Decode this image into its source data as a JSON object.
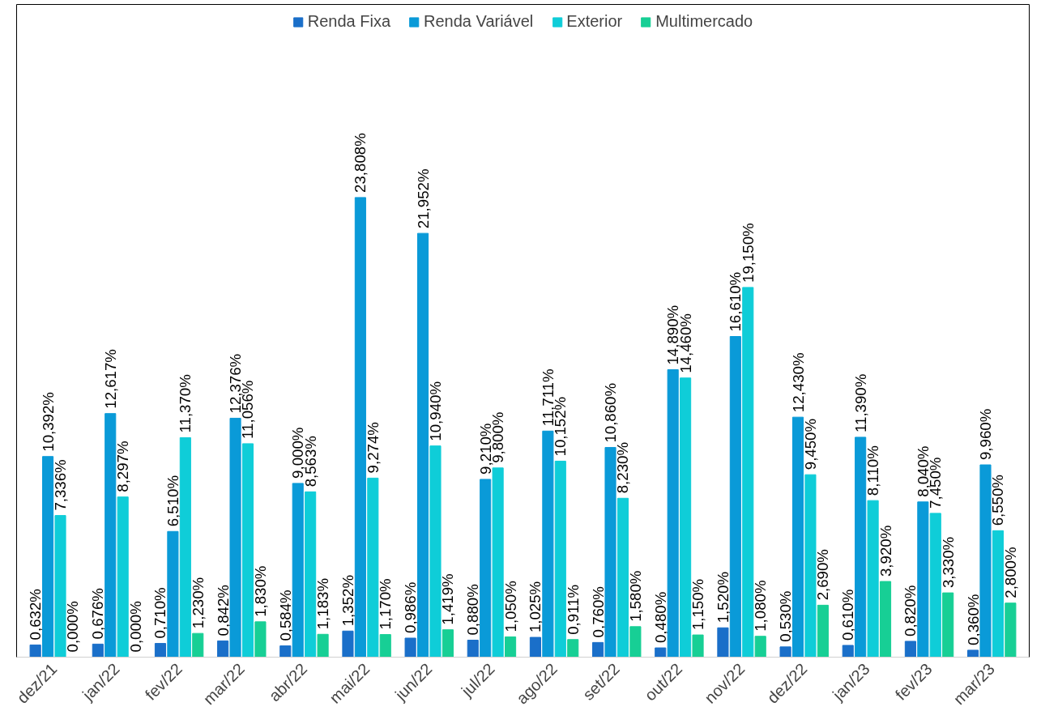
{
  "chart_data": {
    "type": "bar",
    "categories": [
      "dez/21",
      "jan/22",
      "fev/22",
      "mar/22",
      "abr/22",
      "mai/22",
      "jun/22",
      "jul/22",
      "ago/22",
      "set/22",
      "out/22",
      "nov/22",
      "dez/22",
      "jan/23",
      "fev/23",
      "mar/23"
    ],
    "series": [
      {
        "name": "Renda Fixa",
        "color": "#1a6fc9",
        "values": [
          0.632,
          0.676,
          0.71,
          0.842,
          0.584,
          1.352,
          0.986,
          0.88,
          1.025,
          0.76,
          0.48,
          1.52,
          0.53,
          0.61,
          0.82,
          0.36
        ],
        "value_labels": [
          "0,632%",
          "0,676%",
          "0,710%",
          "0,842%",
          "0,584%",
          "1,352%",
          "0,986%",
          "0,880%",
          "1,025%",
          "0,760%",
          "0,480%",
          "1,520%",
          "0,530%",
          "0,610%",
          "0,820%",
          "0,360%"
        ]
      },
      {
        "name": "Renda Variável",
        "color": "#0a9ad8",
        "values": [
          10.392,
          12.617,
          6.51,
          12.376,
          9.0,
          23.808,
          21.952,
          9.21,
          11.711,
          10.86,
          14.89,
          16.61,
          12.43,
          11.39,
          8.04,
          9.96
        ],
        "value_labels": [
          "10,392%",
          "12,617%",
          "6,510%",
          "12,376%",
          "9,000%",
          "23,808%",
          "21,952%",
          "9,210%",
          "11,711%",
          "10,860%",
          "14,890%",
          "16,610%",
          "12,430%",
          "11,390%",
          "8,040%",
          "9,960%"
        ]
      },
      {
        "name": "Exterior",
        "color": "#0fcdd8",
        "values": [
          7.336,
          8.297,
          11.37,
          11.056,
          8.563,
          9.274,
          10.94,
          9.8,
          10.152,
          8.23,
          14.46,
          19.15,
          9.45,
          8.11,
          7.45,
          6.55
        ],
        "value_labels": [
          "7,336%",
          "8,297%",
          "11,370%",
          "11,056%",
          "8,563%",
          "9,274%",
          "10,940%",
          "9,800%",
          "10,152%",
          "8,230%",
          "14,460%",
          "19,150%",
          "9,450%",
          "8,110%",
          "7,450%",
          "6,550%"
        ]
      },
      {
        "name": "Multimercado",
        "color": "#17cf95",
        "values": [
          0.0,
          0.0,
          1.23,
          1.83,
          1.183,
          1.17,
          1.419,
          1.05,
          0.911,
          1.58,
          1.15,
          1.08,
          2.69,
          3.92,
          3.33,
          2.8
        ],
        "value_labels": [
          "0,000%",
          "0,000%",
          "1,230%",
          "1,830%",
          "1,183%",
          "1,170%",
          "1,419%",
          "1,050%",
          "0,911%",
          "1,580%",
          "1,150%",
          "1,080%",
          "2,690%",
          "3,920%",
          "3,330%",
          "2,800%"
        ]
      }
    ],
    "grid": false,
    "legend": "top"
  }
}
